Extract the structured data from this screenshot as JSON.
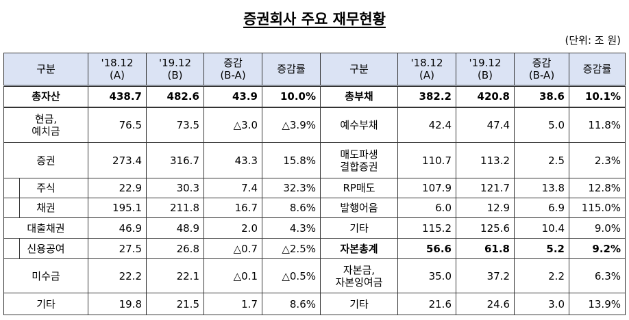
{
  "title": "증권회사 주요 재무현황",
  "unit": "(단위: 조 원)",
  "table": {
    "header": [
      "구분",
      "'18.12\n(A)",
      "'19.12\n(B)",
      "증감\n(B-A)",
      "증감률",
      "구분",
      "'18.12\n(A)",
      "'19.12\n(B)",
      "증감\n(B-A)",
      "증감률"
    ],
    "rows": [
      [
        "총자산",
        "438.7",
        "482.6",
        "43.9",
        "10.0%",
        "총부채",
        "382.2",
        "420.8",
        "38.6",
        "10.1%"
      ],
      [
        "현금,\n예치금",
        "76.5",
        "73.5",
        "△3.0",
        "△3.9%",
        "예수부채",
        "42.4",
        "47.4",
        "5.0",
        "11.8%"
      ],
      [
        "증권",
        "273.4",
        "316.7",
        "43.3",
        "15.8%",
        "매도파생\n결합증권",
        "110.7",
        "113.2",
        "2.5",
        "2.3%"
      ],
      [
        "주식",
        "22.9",
        "30.3",
        "7.4",
        "32.3%",
        "RP매도",
        "107.9",
        "121.7",
        "13.8",
        "12.8%"
      ],
      [
        "채권",
        "195.1",
        "211.8",
        "16.7",
        "8.6%",
        "발행어음",
        "6.0",
        "12.9",
        "6.9",
        "115.0%"
      ],
      [
        "대출채권",
        "46.9",
        "48.9",
        "2.0",
        "4.3%",
        "기타",
        "115.2",
        "125.6",
        "10.4",
        "9.0%"
      ],
      [
        "신용공여",
        "27.5",
        "26.8",
        "△0.7",
        "△2.5%",
        "자본총계",
        "56.6",
        "61.8",
        "5.2",
        "9.2%"
      ],
      [
        "미수금",
        "22.2",
        "22.1",
        "△0.1",
        "△0.5%",
        "자본금,\n자본잉여금",
        "35.0",
        "37.2",
        "2.2",
        "6.3%"
      ],
      [
        "기타",
        "19.8",
        "21.5",
        "1.7",
        "8.6%",
        "기타",
        "21.6",
        "24.6",
        "3.0",
        "13.9%"
      ]
    ]
  }
}
